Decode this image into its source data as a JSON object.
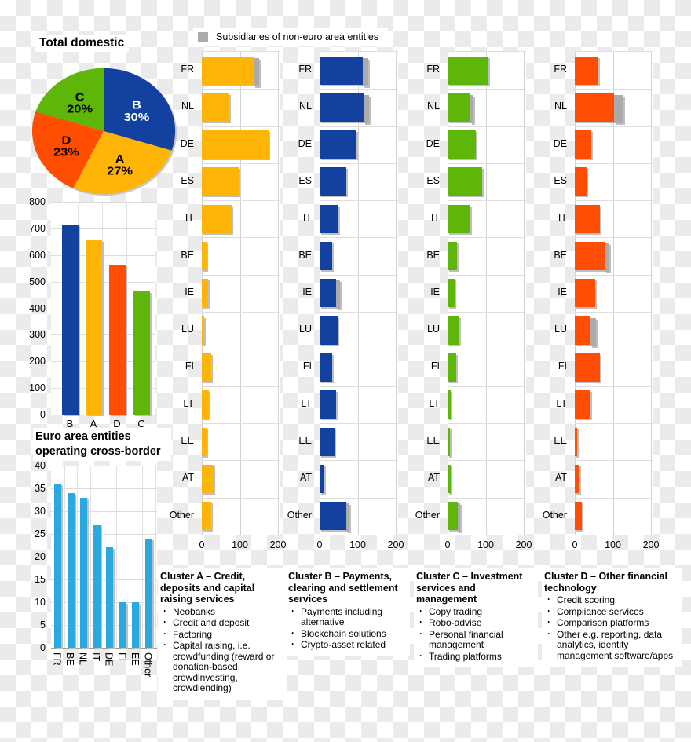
{
  "legend": {
    "label": "Subsidiaries of non-euro area entities",
    "color": "#ABABAB"
  },
  "palette": {
    "blue": "#12419F",
    "yellow": "#FFB408",
    "orange": "#FF4D02",
    "green": "#5EB60A",
    "cyan": "#29A9DF",
    "gray": "#ABABAB"
  },
  "chart_data": [
    {
      "id": "pie",
      "type": "pie",
      "title": "Total domestic",
      "start_angle_deg": -90,
      "direction": "clockwise",
      "value_suffix": "%",
      "slices": [
        {
          "label": "B",
          "value": 30,
          "color": "#12419F",
          "text_color": "#FFFFFF"
        },
        {
          "label": "A",
          "value": 27,
          "color": "#FFB408",
          "text_color": "#000000"
        },
        {
          "label": "D",
          "value": 23,
          "color": "#FF4D02",
          "text_color": "#000000"
        },
        {
          "label": "C",
          "value": 20,
          "color": "#5EB60A",
          "text_color": "#000000"
        }
      ]
    },
    {
      "id": "totals",
      "type": "bar",
      "title": "",
      "categories": [
        "B",
        "A",
        "D",
        "C"
      ],
      "values": [
        715,
        655,
        560,
        465
      ],
      "colors": [
        "#12419F",
        "#FFB408",
        "#FF4D02",
        "#5EB60A"
      ],
      "ylim": [
        0,
        800
      ],
      "ytick": 100,
      "grid": true
    },
    {
      "id": "crossborder",
      "type": "bar",
      "title": "Euro area entities operating cross-border",
      "categories": [
        "FR",
        "BE",
        "NL",
        "IT",
        "DE",
        "FI",
        "EE",
        "Other"
      ],
      "values": [
        36,
        34,
        33,
        27,
        22,
        10,
        10,
        24
      ],
      "color": "#29A9DF",
      "ylim": [
        0,
        40
      ],
      "ytick": 5,
      "grid": true,
      "xlabel_rotation": 90
    },
    {
      "id": "clusterA",
      "type": "hbar",
      "name": "Cluster A",
      "color": "#FFB408",
      "subsidiary_color": "#ABABAB",
      "categories": [
        "FR",
        "NL",
        "DE",
        "ES",
        "IT",
        "BE",
        "IE",
        "LU",
        "FI",
        "LT",
        "EE",
        "AT",
        "Other"
      ],
      "values": [
        137,
        72,
        175,
        96,
        78,
        12,
        16,
        7,
        24,
        18,
        12,
        30,
        24
      ],
      "subsidiaries": [
        13,
        0,
        0,
        0,
        0,
        0,
        0,
        0,
        0,
        0,
        0,
        0,
        0
      ],
      "xlim": [
        0,
        200
      ],
      "xticks": [
        0,
        100,
        200
      ],
      "grid": true
    },
    {
      "id": "clusterB",
      "type": "hbar",
      "name": "Cluster B",
      "color": "#12419F",
      "subsidiary_color": "#ABABAB",
      "categories": [
        "FR",
        "NL",
        "DE",
        "ES",
        "IT",
        "BE",
        "IE",
        "LU",
        "FI",
        "LT",
        "EE",
        "AT",
        "Other"
      ],
      "values": [
        114,
        116,
        96,
        69,
        50,
        32,
        43,
        48,
        33,
        43,
        40,
        12,
        69
      ],
      "subsidiaries": [
        13,
        14,
        0,
        0,
        0,
        0,
        10,
        0,
        0,
        0,
        0,
        0,
        10
      ],
      "xlim": [
        0,
        200
      ],
      "xticks": [
        0,
        100,
        200
      ],
      "grid": true
    },
    {
      "id": "clusterC",
      "type": "hbar",
      "name": "Cluster C",
      "color": "#5EB60A",
      "subsidiary_color": "#ABABAB",
      "categories": [
        "FR",
        "NL",
        "DE",
        "ES",
        "IT",
        "BE",
        "IE",
        "LU",
        "FI",
        "LT",
        "EE",
        "AT",
        "Other"
      ],
      "values": [
        108,
        60,
        74,
        90,
        59,
        24,
        19,
        31,
        22,
        8,
        6,
        9,
        26
      ],
      "subsidiaries": [
        0,
        9,
        0,
        0,
        0,
        0,
        0,
        0,
        0,
        0,
        0,
        0,
        8
      ],
      "xlim": [
        0,
        200
      ],
      "xticks": [
        0,
        100,
        200
      ],
      "grid": true
    },
    {
      "id": "clusterD",
      "type": "hbar",
      "name": "Cluster D",
      "color": "#FF4D02",
      "subsidiary_color": "#ABABAB",
      "categories": [
        "FR",
        "NL",
        "DE",
        "ES",
        "IT",
        "BE",
        "IE",
        "LU",
        "FI",
        "LT",
        "EE",
        "AT",
        "Other"
      ],
      "values": [
        61,
        104,
        43,
        31,
        66,
        78,
        53,
        41,
        65,
        41,
        7,
        12,
        19
      ],
      "subsidiaries": [
        0,
        25,
        0,
        0,
        0,
        12,
        0,
        14,
        0,
        0,
        0,
        0,
        0
      ],
      "xlim": [
        0,
        200
      ],
      "xticks": [
        0,
        100,
        200
      ],
      "grid": true
    }
  ],
  "cluster_descriptions": [
    {
      "title": "Cluster A – Credit, deposits and capital raising services",
      "bullets": [
        "Neobanks",
        "Credit and deposit",
        "Factoring",
        "Capital raising, i.e. crowdfunding (reward or donation-based, crowdinvesting, crowdlending)"
      ]
    },
    {
      "title": "Cluster B – Payments, clearing and settlement services",
      "bullets": [
        "Payments including alternative",
        "Blockchain solutions",
        "Crypto-asset related"
      ]
    },
    {
      "title": "Cluster C – Investment services and management",
      "bullets": [
        "Copy trading",
        "Robo-advise",
        "Personal financial management",
        "Trading platforms"
      ]
    },
    {
      "title": "Cluster D – Other financial technology",
      "bullets": [
        "Credit scoring",
        "Compliance services",
        "Comparison platforms",
        "Other e.g. reporting, data analytics, identity management software/apps"
      ]
    }
  ]
}
